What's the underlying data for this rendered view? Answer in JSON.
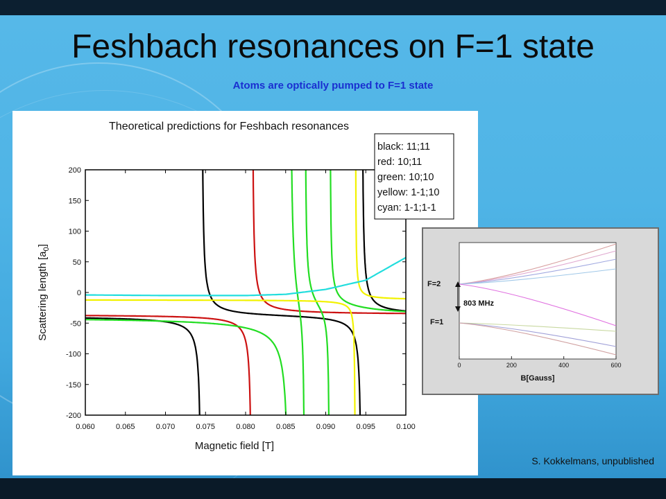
{
  "slide": {
    "title": "Feshbach resonances on F=1 state",
    "subtitle": "Atoms are optically pumped to F=1 state",
    "credit": "S. Kokkelmans, unpublished"
  },
  "colors": {
    "background": "#4fb4e6",
    "title": "#0b0b0b",
    "subtitle": "#1a2fd0",
    "black": "#000000",
    "red": "#cc1111",
    "green": "#22dd22",
    "yellow": "#f2f200",
    "cyan": "#22dddd"
  },
  "chart_data": [
    {
      "type": "line",
      "title": "Theoretical predictions for Feshbach resonances",
      "xlabel": "Magnetic field [T]",
      "ylabel": "Scattering length [a0]",
      "xlim": [
        0.06,
        0.1
      ],
      "ylim": [
        -200,
        200
      ],
      "xticks": [
        "0.060",
        "0.065",
        "0.070",
        "0.075",
        "0.080",
        "0.085",
        "0.090",
        "0.095",
        "0.100"
      ],
      "yticks": [
        "200",
        "150",
        "100",
        "50",
        "0",
        "-50",
        "-100",
        "-150",
        "-200"
      ],
      "legend": {
        "placement": "top-right",
        "entries": [
          "black: 11;11",
          "red: 10;11",
          "green: 10;10",
          "yellow: 1-1;10",
          "cyan: 1-1;1-1"
        ]
      },
      "series": [
        {
          "name": "black: 11;11",
          "color": "black",
          "resonances": [
            0.0745,
            0.0945
          ],
          "background": -38
        },
        {
          "name": "red: 10;11",
          "color": "red",
          "resonances": [
            0.0808
          ],
          "background": -36
        },
        {
          "name": "green: 10;10",
          "color": "green",
          "resonances": [
            0.0855,
            0.0874,
            0.0905
          ],
          "background": -40
        },
        {
          "name": "yellow: 1-1;10",
          "color": "yellow",
          "resonances": [
            0.0937
          ],
          "background": -12
        },
        {
          "name": "cyan: 1-1;1-1",
          "color": "cyan",
          "points": [
            [
              0.06,
              -4
            ],
            [
              0.07,
              -5
            ],
            [
              0.08,
              -5
            ],
            [
              0.085,
              -3
            ],
            [
              0.09,
              5
            ],
            [
              0.095,
              20
            ],
            [
              0.1,
              57
            ]
          ]
        }
      ]
    },
    {
      "type": "line",
      "title": "",
      "xlabel": "B[Gauss]",
      "ylabel": "",
      "xlim": [
        0,
        600
      ],
      "xticks": [
        "0",
        "200",
        "400",
        "600"
      ],
      "annotations": [
        "F=2",
        "F=1",
        "803 MHz"
      ],
      "series_count": 8
    }
  ]
}
